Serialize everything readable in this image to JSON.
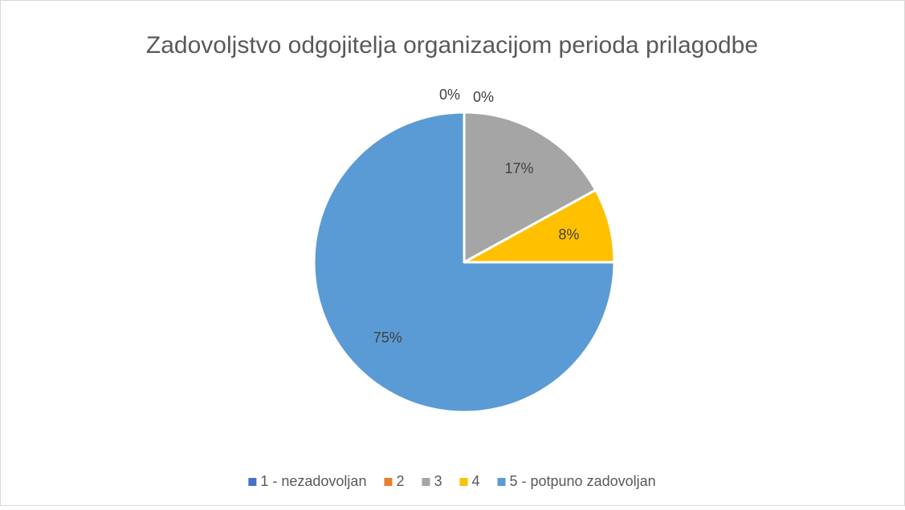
{
  "chart_data": {
    "type": "pie",
    "title": "Zadovoljstvo odgojitelja organizacijom perioda prilagodbe",
    "categories": [
      "1 - nezadovoljan",
      "2",
      "3",
      "4",
      "5 - potpuno zadovoljan"
    ],
    "values": [
      0,
      0,
      17,
      8,
      75
    ],
    "value_labels": [
      "0%",
      "0%",
      "17%",
      "8%",
      "75%"
    ],
    "colors": [
      "#4472c4",
      "#ed7d31",
      "#a5a5a5",
      "#ffc000",
      "#5b9bd5"
    ],
    "legend": "bottom"
  }
}
